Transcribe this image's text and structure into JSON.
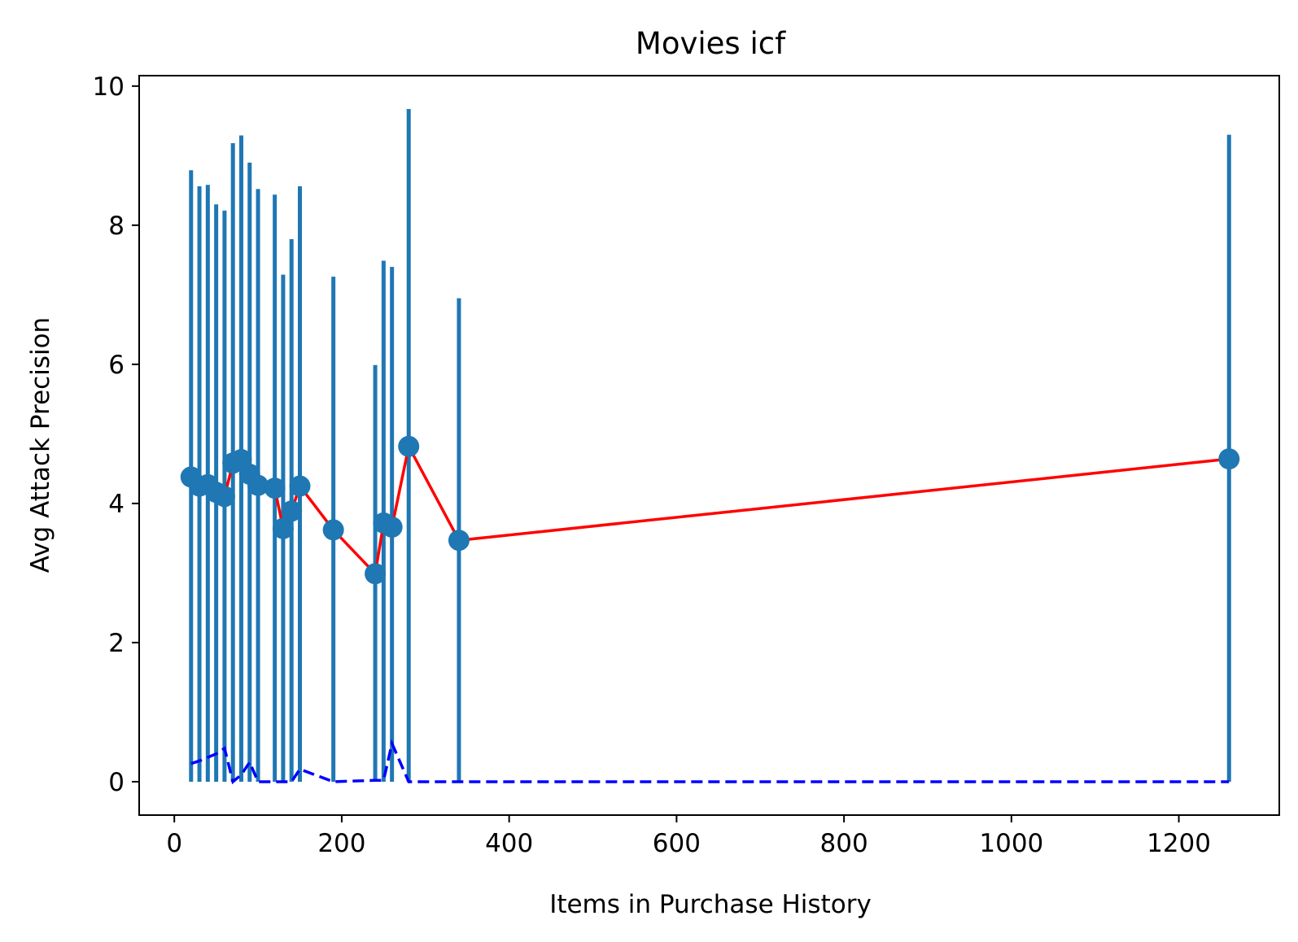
{
  "chart_data": {
    "type": "line",
    "title": "Movies icf",
    "xlabel": "Items in Purchase History",
    "ylabel": "Avg Attack Precision",
    "xlim": [
      -42,
      1320
    ],
    "ylim": [
      -0.48,
      10.15
    ],
    "xticks": [
      0,
      200,
      400,
      600,
      800,
      1000,
      1200
    ],
    "yticks": [
      0,
      2,
      4,
      6,
      8,
      10
    ],
    "xtick_labels": [
      "0",
      "200",
      "400",
      "600",
      "800",
      "1000",
      "1200"
    ],
    "ytick_labels": [
      "0",
      "2",
      "4",
      "6",
      "8",
      "10"
    ],
    "grid": false,
    "legend": "none",
    "colors": {
      "mean_line": "#ff0000",
      "marker": "#1f77b4",
      "error_bar": "#1f77b4",
      "lower_line": "#0000ff"
    },
    "series": [
      {
        "x": [
          20,
          30,
          40,
          50,
          60,
          70,
          80,
          90,
          100,
          120,
          130,
          140,
          150,
          190,
          240,
          250,
          260,
          280,
          340,
          1260
        ],
        "values": [
          4.38,
          4.25,
          4.27,
          4.16,
          4.1,
          4.58,
          4.63,
          4.42,
          4.26,
          4.22,
          3.64,
          3.89,
          4.25,
          3.62,
          2.99,
          3.72,
          3.66,
          4.82,
          3.47,
          4.64
        ],
        "error_low": [
          0.0,
          0.0,
          0.0,
          0.0,
          0.0,
          0.0,
          0.0,
          0.0,
          0.0,
          0.0,
          0.0,
          0.0,
          0.0,
          0.0,
          0.0,
          0.0,
          0.0,
          0.0,
          0.0,
          0.0
        ],
        "error_high": [
          8.79,
          8.56,
          8.58,
          8.3,
          8.21,
          9.18,
          9.29,
          8.9,
          8.52,
          8.44,
          7.29,
          7.8,
          8.56,
          7.26,
          5.99,
          7.49,
          7.4,
          9.67,
          6.95,
          9.3
        ]
      },
      {
        "style": "dashed",
        "x": [
          20,
          30,
          40,
          50,
          60,
          70,
          80,
          90,
          100,
          120,
          130,
          140,
          150,
          190,
          240,
          250,
          260,
          280,
          340,
          1260
        ],
        "values": [
          0.26,
          0.3,
          0.35,
          0.4,
          0.48,
          0.0,
          0.1,
          0.28,
          0.0,
          0.0,
          0.0,
          0.0,
          0.18,
          0.0,
          0.02,
          0.02,
          0.55,
          0.0,
          0.0,
          0.0
        ]
      }
    ]
  }
}
